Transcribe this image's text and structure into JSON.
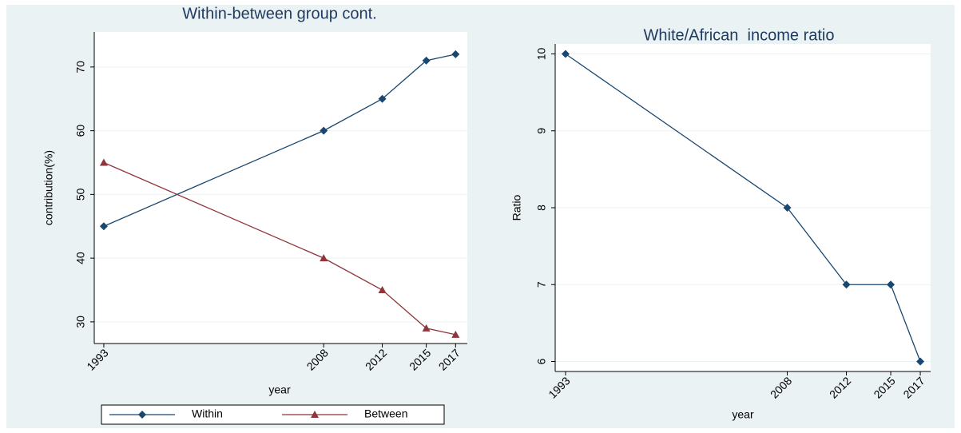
{
  "chart_data": [
    {
      "type": "line",
      "title": "Within-between group cont.",
      "x_label": "year",
      "y_label": "contribution(%)",
      "x": [
        1993,
        2008,
        2012,
        2015,
        2017
      ],
      "series": [
        {
          "name": "Within",
          "color": "#1a476f",
          "marker": "diamond",
          "values": [
            45,
            60,
            65,
            71,
            72
          ]
        },
        {
          "name": "Between",
          "color": "#90353b",
          "marker": "triangle",
          "values": [
            55,
            40,
            35,
            29,
            28
          ]
        }
      ],
      "xlim": [
        1992.35,
        2017.8
      ],
      "xticks": [
        1993,
        2008,
        2012,
        2015,
        2017
      ],
      "ylim": [
        26.6,
        75.5
      ],
      "yticks": [
        30,
        40,
        50,
        60,
        70
      ],
      "grid": true,
      "legend": "bottom"
    },
    {
      "type": "line",
      "title": "White/African  income ratio",
      "x_label": "year",
      "y_label": "Ratio",
      "x": [
        1993,
        2008,
        2012,
        2015,
        2017
      ],
      "values": [
        10,
        8,
        7,
        7,
        6
      ],
      "color": "#1a476f",
      "marker": "diamond",
      "xlim": [
        1992.3,
        2017.7
      ],
      "xticks": [
        1993,
        2008,
        2012,
        2015,
        2017
      ],
      "ylim": [
        5.87,
        10.13
      ],
      "yticks": [
        6,
        7,
        8,
        9,
        10
      ],
      "grid": true
    }
  ]
}
